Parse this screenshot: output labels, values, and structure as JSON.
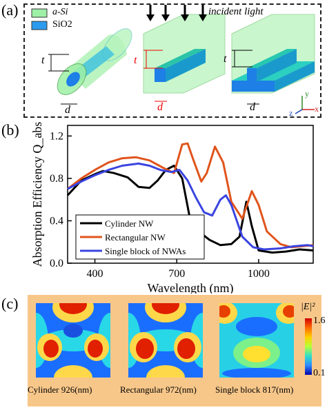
{
  "panels": {
    "a": {
      "label": "(a)",
      "legend": [
        {
          "name": "a-Si",
          "color": "#9ef0a6"
        },
        {
          "name": "SiO2",
          "color": "#2b9bef"
        }
      ],
      "incident_light": "incident light",
      "dims": {
        "t": "t",
        "d": "d"
      },
      "axes": {
        "y": "y",
        "z": "z",
        "x": "x"
      }
    },
    "b": {
      "label": "(b)"
    },
    "c": {
      "label": "(c)",
      "colorbar": {
        "title": "|E|²",
        "max": "1.6",
        "min": "0.1"
      },
      "maps": [
        {
          "caption": "Cylinder 926(nm)"
        },
        {
          "caption": "Rectangular 972(nm)"
        },
        {
          "caption": "Single block 817(nm)"
        }
      ]
    }
  },
  "chart_data": {
    "type": "line",
    "xlabel": "Wavelength (nm)",
    "ylabel": "Absorption Efficiency Q_abs",
    "xlim": [
      300,
      1200
    ],
    "ylim": [
      0,
      1.3
    ],
    "xticks": [
      400,
      700,
      1000
    ],
    "yticks": [
      0.0,
      0.4,
      0.8,
      1.2
    ],
    "legend_position": "bottom-left",
    "series": [
      {
        "name": "Cylinder NW",
        "color": "#000000",
        "x": [
          300,
          350,
          400,
          430,
          470,
          520,
          560,
          600,
          630,
          660,
          690,
          720,
          750,
          780,
          820,
          860,
          900,
          930,
          955,
          975,
          1000,
          1050,
          1100,
          1150,
          1200
        ],
        "y": [
          0.64,
          0.78,
          0.84,
          0.87,
          0.85,
          0.81,
          0.72,
          0.71,
          0.78,
          0.88,
          0.92,
          0.8,
          0.4,
          0.3,
          0.22,
          0.17,
          0.18,
          0.25,
          0.58,
          0.35,
          0.12,
          0.1,
          0.11,
          0.13,
          0.12
        ]
      },
      {
        "name": "Rectangular NW",
        "color": "#e0541c",
        "x": [
          300,
          350,
          400,
          450,
          500,
          550,
          600,
          650,
          690,
          720,
          740,
          760,
          790,
          810,
          840,
          870,
          900,
          940,
          975,
          1000,
          1030,
          1080,
          1120,
          1160,
          1200
        ],
        "y": [
          0.7,
          0.8,
          0.88,
          0.95,
          0.99,
          1.0,
          0.97,
          0.9,
          0.85,
          1.12,
          1.13,
          0.98,
          0.77,
          0.85,
          1.1,
          0.95,
          0.58,
          0.42,
          0.68,
          0.55,
          0.3,
          0.18,
          0.15,
          0.16,
          0.17
        ]
      },
      {
        "name": "Single block of NWAs",
        "color": "#3a44e0",
        "x": [
          300,
          350,
          400,
          450,
          500,
          560,
          600,
          640,
          680,
          710,
          740,
          770,
          800,
          830,
          860,
          880,
          900,
          940,
          980,
          1020,
          1080,
          1130,
          1180,
          1200
        ],
        "y": [
          0.7,
          0.77,
          0.83,
          0.88,
          0.92,
          0.94,
          0.92,
          0.88,
          0.86,
          0.88,
          0.78,
          0.62,
          0.48,
          0.45,
          0.6,
          0.64,
          0.55,
          0.25,
          0.15,
          0.13,
          0.14,
          0.16,
          0.17,
          0.16
        ]
      }
    ]
  }
}
